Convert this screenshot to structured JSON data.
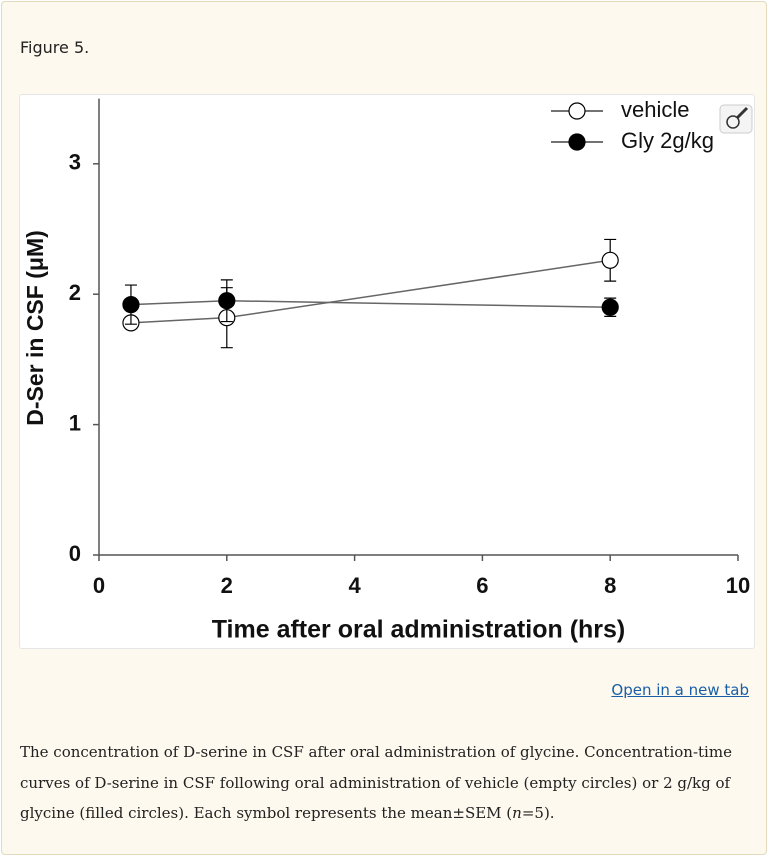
{
  "figure_label": "Figure 5.",
  "chart_data": {
    "type": "line",
    "xlabel": "Time after oral administration (hrs)",
    "ylabel": "D-Ser in CSF (μM)",
    "x": [
      0.5,
      2,
      8
    ],
    "series": [
      {
        "name": "vehicle",
        "color": "#000000",
        "filled": false,
        "values": [
          1.78,
          1.82,
          2.26
        ],
        "errors": [
          0.03,
          0.23,
          0.16
        ]
      },
      {
        "name": "Gly 2g/kg",
        "color": "#000000",
        "filled": true,
        "values": [
          1.92,
          1.95,
          1.9
        ],
        "errors": [
          0.15,
          0.16,
          0.07
        ]
      }
    ],
    "xlim": [
      0,
      10
    ],
    "xticks": [
      0,
      2,
      4,
      6,
      8,
      10
    ],
    "ylim": [
      0,
      3.5
    ],
    "yticks": [
      0,
      1,
      2,
      3
    ],
    "legend": "upper right"
  },
  "link": "Open in a new tab",
  "caption": [
    "The concentration of D-serine in CSF after oral administration of glycine. Concentration-time curves of D-serine in CSF following oral administration of vehicle (empty circles) or 2 g/kg of glycine (filled circles). Each symbol represents the mean±SEM (",
    "n",
    "=5)."
  ]
}
